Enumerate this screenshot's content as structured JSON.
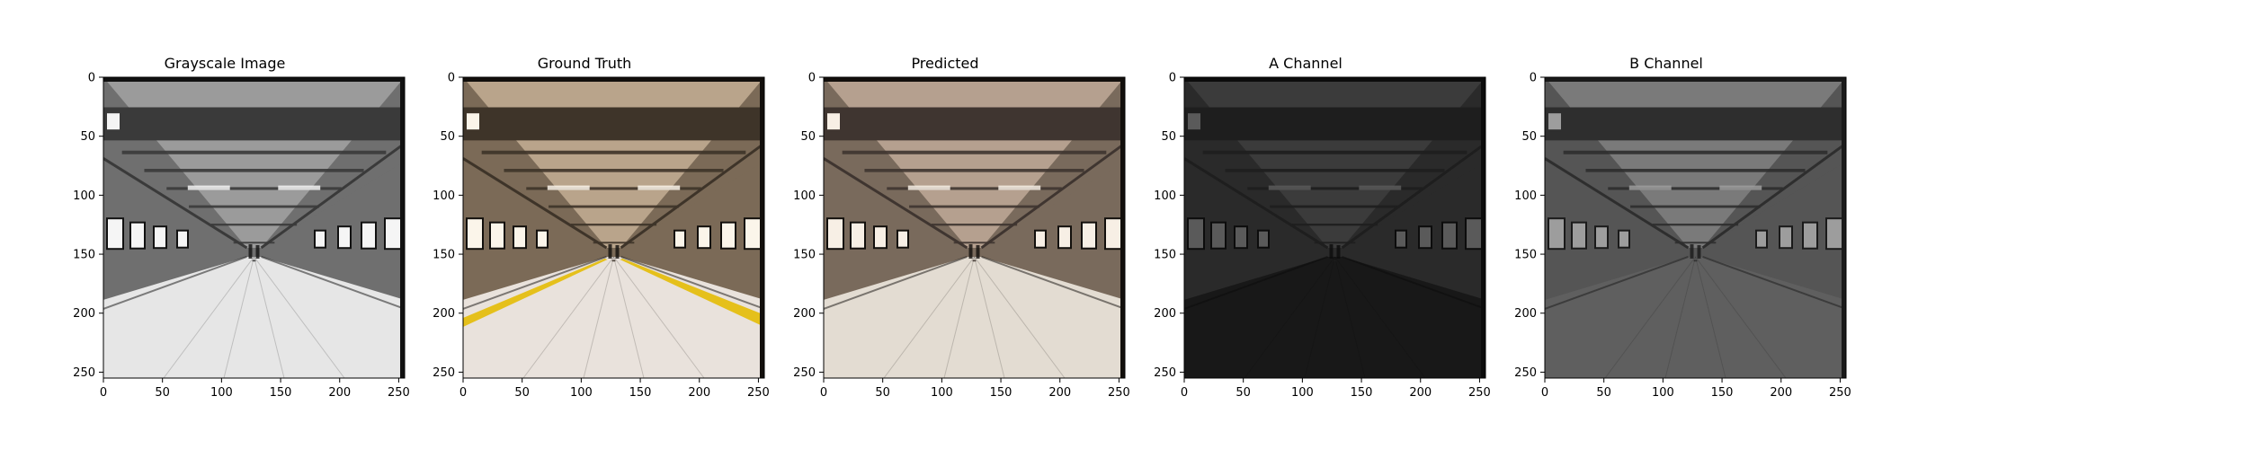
{
  "figure": {
    "panels": [
      {
        "title": "Grayscale Image",
        "kind": "grayscale",
        "palette": {
          "ceiling": "#9b9b9b",
          "beam": "#3a3a3a",
          "wall": "#6f6f6f",
          "floor": "#e6e6e6",
          "edge": "#111111",
          "highlight": "#f5f5f5",
          "stripe": null
        }
      },
      {
        "title": "Ground Truth",
        "kind": "color",
        "palette": {
          "ceiling": "#b9a48b",
          "beam": "#3e3429",
          "wall": "#7b6a57",
          "floor": "#e9e2dc",
          "edge": "#120f0c",
          "highlight": "#fbf5ea",
          "stripe": "#e5c01b"
        }
      },
      {
        "title": "Predicted",
        "kind": "color",
        "palette": {
          "ceiling": "#b5a08f",
          "beam": "#3f3530",
          "wall": "#796a5c",
          "floor": "#e3dcd2",
          "edge": "#120f0c",
          "highlight": "#f7efe5",
          "stripe": null
        }
      },
      {
        "title": "A Channel",
        "kind": "dark",
        "palette": {
          "ceiling": "#3b3b3b",
          "beam": "#1e1e1e",
          "wall": "#2a2a2a",
          "floor": "#181818",
          "edge": "#0c0c0c",
          "highlight": "#5a5a5a",
          "stripe": null
        }
      },
      {
        "title": "B Channel",
        "kind": "mid",
        "palette": {
          "ceiling": "#7a7a7a",
          "beam": "#2e2e2e",
          "wall": "#555555",
          "floor": "#5f5f5f",
          "edge": "#1a1a1a",
          "highlight": "#9d9d9d",
          "stripe": null
        }
      }
    ],
    "x_ticks": [
      "0",
      "50",
      "100",
      "150",
      "200",
      "250"
    ],
    "y_ticks": [
      "0",
      "50",
      "100",
      "150",
      "200",
      "250"
    ],
    "image_extent": [
      0,
      255
    ]
  }
}
